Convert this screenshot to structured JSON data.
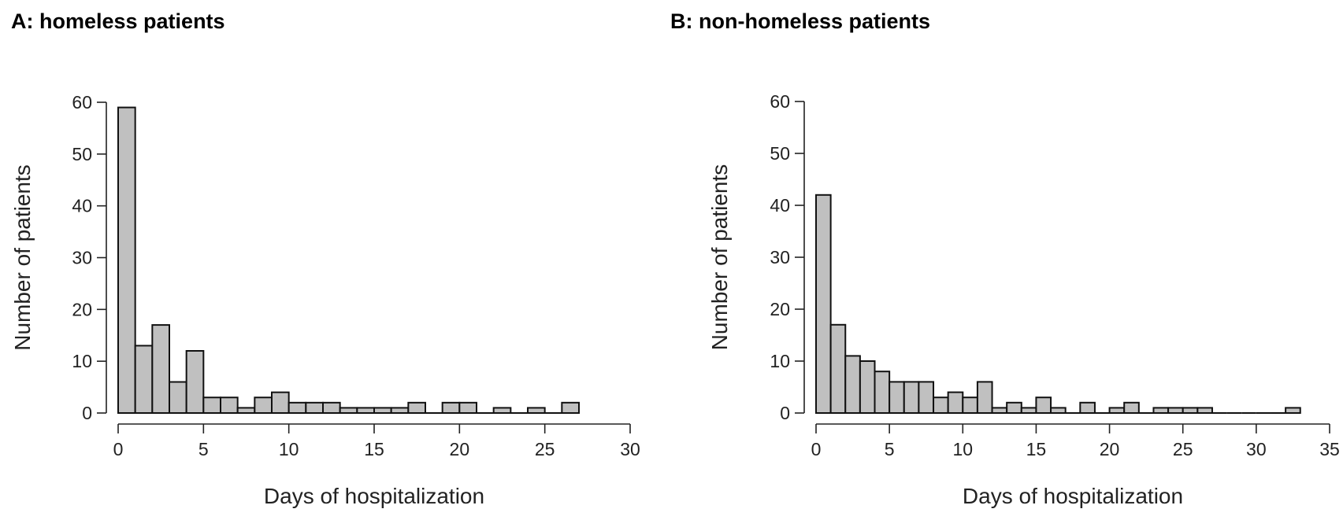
{
  "chart_data": [
    {
      "type": "bar",
      "title": "A: homeless patients",
      "xlabel": "Days of hospitalization",
      "ylabel": "Number of patients",
      "xlim": [
        0,
        30
      ],
      "ylim": [
        0,
        60
      ],
      "xticks": [
        0,
        5,
        10,
        15,
        20,
        25,
        30
      ],
      "yticks": [
        0,
        10,
        20,
        30,
        40,
        50,
        60
      ],
      "bin_width": 1,
      "bin_start": 0,
      "values": [
        59,
        13,
        17,
        6,
        12,
        3,
        3,
        1,
        3,
        4,
        2,
        2,
        2,
        1,
        1,
        1,
        1,
        2,
        0,
        2,
        2,
        0,
        1,
        0,
        1,
        0,
        2
      ],
      "bar_color": "#c0c0c0",
      "grid": false
    },
    {
      "type": "bar",
      "title": "B: non-homeless patients",
      "xlabel": "Days of hospitalization",
      "ylabel": "Number of patients",
      "xlim": [
        0,
        35
      ],
      "ylim": [
        0,
        60
      ],
      "xticks": [
        0,
        5,
        10,
        15,
        20,
        25,
        30,
        35
      ],
      "yticks": [
        0,
        10,
        20,
        30,
        40,
        50,
        60
      ],
      "bin_width": 1,
      "bin_start": 0,
      "values": [
        42,
        17,
        11,
        10,
        8,
        6,
        6,
        6,
        3,
        4,
        3,
        6,
        1,
        2,
        1,
        3,
        1,
        0,
        2,
        0,
        1,
        2,
        0,
        1,
        1,
        1,
        1,
        0,
        0,
        0,
        0,
        0,
        1
      ],
      "bar_color": "#c0c0c0",
      "grid": false
    }
  ]
}
